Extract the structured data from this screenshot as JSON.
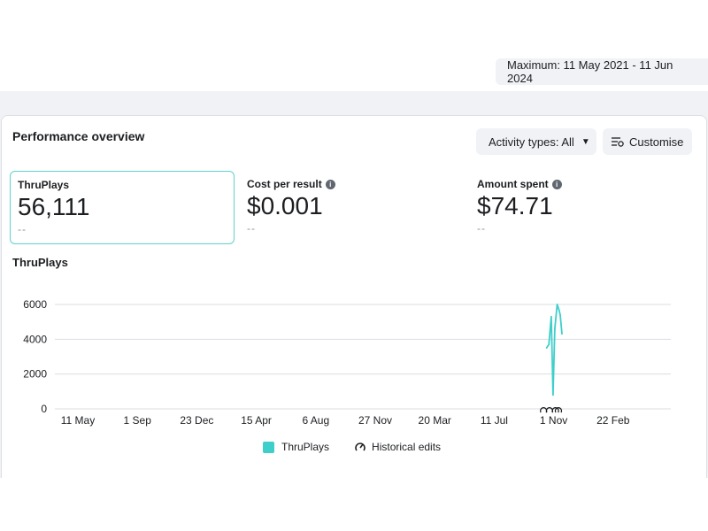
{
  "date_range": {
    "label": "Maximum: 11 May 2021 - 11 Jun 2024"
  },
  "card": {
    "title": "Performance overview",
    "activity_filter": "Activity types: All",
    "customise_label": "Customise"
  },
  "metrics": [
    {
      "label": "ThruPlays",
      "value": "56,111",
      "compare": "--",
      "has_info": false
    },
    {
      "label": "Cost per result",
      "value": "$0.001",
      "compare": "--",
      "has_info": true
    },
    {
      "label": "Amount spent",
      "value": "$74.71",
      "compare": "--",
      "has_info": true
    }
  ],
  "chart_title": "ThruPlays",
  "legend": {
    "series": "ThruPlays",
    "edits": "Historical edits"
  },
  "colors": {
    "series": "#3ecfcb",
    "selected_border": "#5fd1cd",
    "grid": "#dadde1"
  },
  "chart_data": {
    "type": "line",
    "title": "ThruPlays",
    "xlabel": "",
    "ylabel": "",
    "ylim": [
      0,
      6000
    ],
    "y_ticks": [
      0,
      2000,
      4000,
      6000
    ],
    "x_tick_labels": [
      "11 May",
      "1 Sep",
      "23 Dec",
      "15 Apr",
      "6 Aug",
      "27 Nov",
      "20 Mar",
      "11 Jul",
      "1 Nov",
      "22 Feb"
    ],
    "series": [
      {
        "name": "ThruPlays",
        "x": [
          7.88,
          7.92,
          7.96,
          7.99,
          8.02,
          8.06,
          8.09,
          8.11,
          8.14
        ],
        "values": [
          3500,
          3700,
          5300,
          800,
          4600,
          6000,
          5700,
          5400,
          4300
        ]
      }
    ],
    "annotations": [
      {
        "type": "historical-edits-markers",
        "x": [
          7.83,
          7.93,
          8.03,
          8.08
        ]
      }
    ],
    "grid": true,
    "legend_position": "bottom"
  }
}
